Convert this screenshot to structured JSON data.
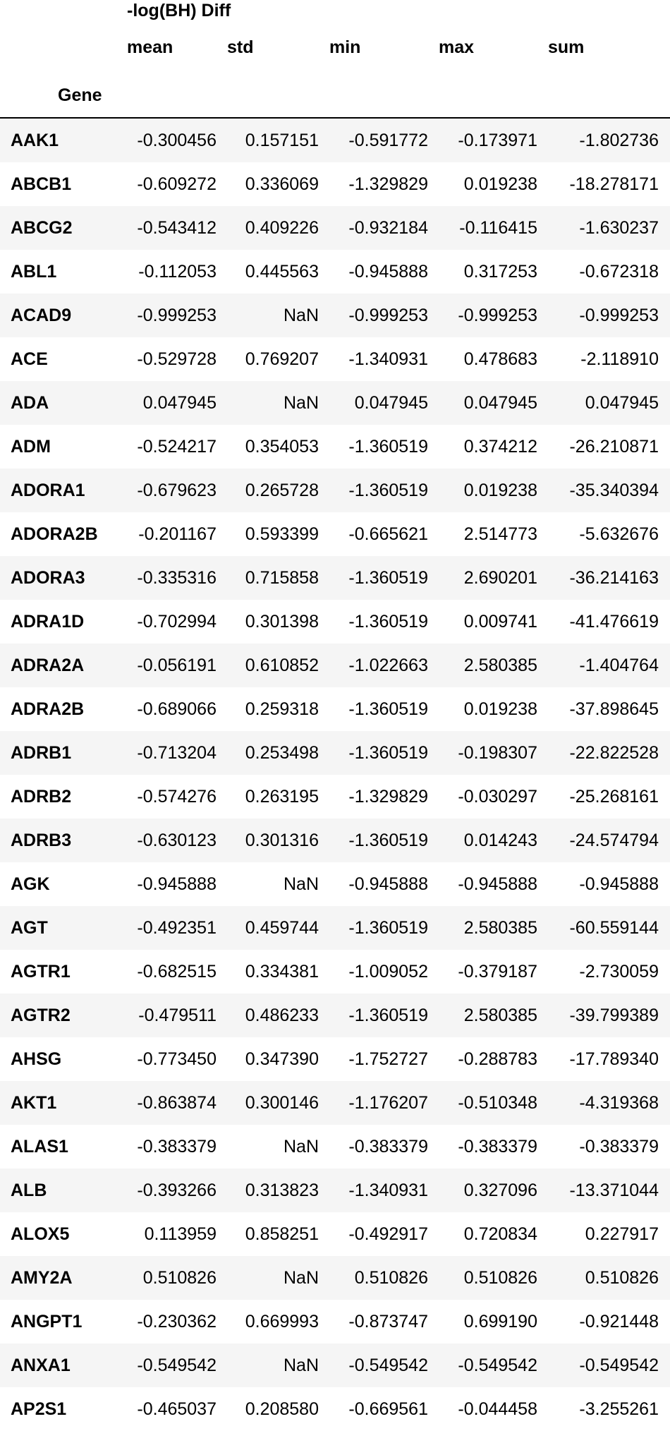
{
  "table": {
    "column_group": "-log(BH) Diff",
    "columns": [
      "mean",
      "std",
      "min",
      "max",
      "sum"
    ],
    "index_name": "Gene",
    "rows": [
      {
        "gene": "AAK1",
        "mean": "-0.300456",
        "std": "0.157151",
        "min": "-0.591772",
        "max": "-0.173971",
        "sum": "-1.802736"
      },
      {
        "gene": "ABCB1",
        "mean": "-0.609272",
        "std": "0.336069",
        "min": "-1.329829",
        "max": "0.019238",
        "sum": "-18.278171"
      },
      {
        "gene": "ABCG2",
        "mean": "-0.543412",
        "std": "0.409226",
        "min": "-0.932184",
        "max": "-0.116415",
        "sum": "-1.630237"
      },
      {
        "gene": "ABL1",
        "mean": "-0.112053",
        "std": "0.445563",
        "min": "-0.945888",
        "max": "0.317253",
        "sum": "-0.672318"
      },
      {
        "gene": "ACAD9",
        "mean": "-0.999253",
        "std": "NaN",
        "min": "-0.999253",
        "max": "-0.999253",
        "sum": "-0.999253"
      },
      {
        "gene": "ACE",
        "mean": "-0.529728",
        "std": "0.769207",
        "min": "-1.340931",
        "max": "0.478683",
        "sum": "-2.118910"
      },
      {
        "gene": "ADA",
        "mean": "0.047945",
        "std": "NaN",
        "min": "0.047945",
        "max": "0.047945",
        "sum": "0.047945"
      },
      {
        "gene": "ADM",
        "mean": "-0.524217",
        "std": "0.354053",
        "min": "-1.360519",
        "max": "0.374212",
        "sum": "-26.210871"
      },
      {
        "gene": "ADORA1",
        "mean": "-0.679623",
        "std": "0.265728",
        "min": "-1.360519",
        "max": "0.019238",
        "sum": "-35.340394"
      },
      {
        "gene": "ADORA2B",
        "mean": "-0.201167",
        "std": "0.593399",
        "min": "-0.665621",
        "max": "2.514773",
        "sum": "-5.632676"
      },
      {
        "gene": "ADORA3",
        "mean": "-0.335316",
        "std": "0.715858",
        "min": "-1.360519",
        "max": "2.690201",
        "sum": "-36.214163"
      },
      {
        "gene": "ADRA1D",
        "mean": "-0.702994",
        "std": "0.301398",
        "min": "-1.360519",
        "max": "0.009741",
        "sum": "-41.476619"
      },
      {
        "gene": "ADRA2A",
        "mean": "-0.056191",
        "std": "0.610852",
        "min": "-1.022663",
        "max": "2.580385",
        "sum": "-1.404764"
      },
      {
        "gene": "ADRA2B",
        "mean": "-0.689066",
        "std": "0.259318",
        "min": "-1.360519",
        "max": "0.019238",
        "sum": "-37.898645"
      },
      {
        "gene": "ADRB1",
        "mean": "-0.713204",
        "std": "0.253498",
        "min": "-1.360519",
        "max": "-0.198307",
        "sum": "-22.822528"
      },
      {
        "gene": "ADRB2",
        "mean": "-0.574276",
        "std": "0.263195",
        "min": "-1.329829",
        "max": "-0.030297",
        "sum": "-25.268161"
      },
      {
        "gene": "ADRB3",
        "mean": "-0.630123",
        "std": "0.301316",
        "min": "-1.360519",
        "max": "0.014243",
        "sum": "-24.574794"
      },
      {
        "gene": "AGK",
        "mean": "-0.945888",
        "std": "NaN",
        "min": "-0.945888",
        "max": "-0.945888",
        "sum": "-0.945888"
      },
      {
        "gene": "AGT",
        "mean": "-0.492351",
        "std": "0.459744",
        "min": "-1.360519",
        "max": "2.580385",
        "sum": "-60.559144"
      },
      {
        "gene": "AGTR1",
        "mean": "-0.682515",
        "std": "0.334381",
        "min": "-1.009052",
        "max": "-0.379187",
        "sum": "-2.730059"
      },
      {
        "gene": "AGTR2",
        "mean": "-0.479511",
        "std": "0.486233",
        "min": "-1.360519",
        "max": "2.580385",
        "sum": "-39.799389"
      },
      {
        "gene": "AHSG",
        "mean": "-0.773450",
        "std": "0.347390",
        "min": "-1.752727",
        "max": "-0.288783",
        "sum": "-17.789340"
      },
      {
        "gene": "AKT1",
        "mean": "-0.863874",
        "std": "0.300146",
        "min": "-1.176207",
        "max": "-0.510348",
        "sum": "-4.319368"
      },
      {
        "gene": "ALAS1",
        "mean": "-0.383379",
        "std": "NaN",
        "min": "-0.383379",
        "max": "-0.383379",
        "sum": "-0.383379"
      },
      {
        "gene": "ALB",
        "mean": "-0.393266",
        "std": "0.313823",
        "min": "-1.340931",
        "max": "0.327096",
        "sum": "-13.371044"
      },
      {
        "gene": "ALOX5",
        "mean": "0.113959",
        "std": "0.858251",
        "min": "-0.492917",
        "max": "0.720834",
        "sum": "0.227917"
      },
      {
        "gene": "AMY2A",
        "mean": "0.510826",
        "std": "NaN",
        "min": "0.510826",
        "max": "0.510826",
        "sum": "0.510826"
      },
      {
        "gene": "ANGPT1",
        "mean": "-0.230362",
        "std": "0.669993",
        "min": "-0.873747",
        "max": "0.699190",
        "sum": "-0.921448"
      },
      {
        "gene": "ANXA1",
        "mean": "-0.549542",
        "std": "NaN",
        "min": "-0.549542",
        "max": "-0.549542",
        "sum": "-0.549542"
      },
      {
        "gene": "AP2S1",
        "mean": "-0.465037",
        "std": "0.208580",
        "min": "-0.669561",
        "max": "-0.044458",
        "sum": "-3.255261"
      }
    ]
  }
}
